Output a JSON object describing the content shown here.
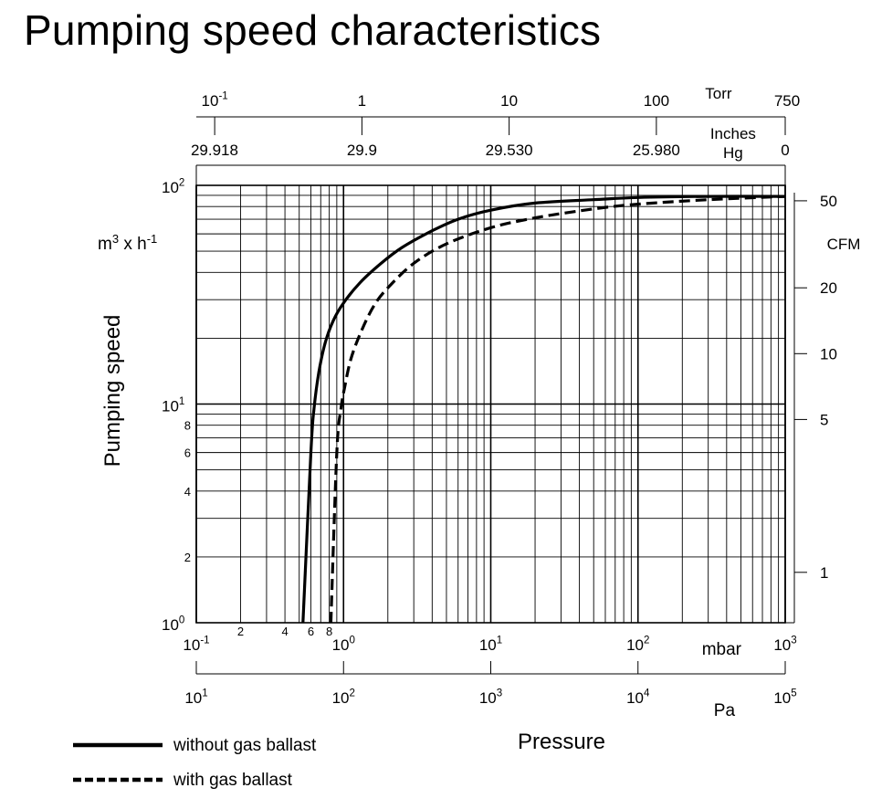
{
  "page": {
    "title": "Pumping speed characteristics"
  },
  "chart_data": {
    "type": "line",
    "title": "Pumping speed characteristics",
    "xlabel": "Pressure",
    "ylabel": "Pumping speed",
    "x_scale": "log",
    "y_scale": "log",
    "xlim": [
      0.1,
      1000
    ],
    "ylim": [
      1,
      100
    ],
    "grid": true,
    "x_unit": "mbar",
    "y_unit": "m³ x h⁻¹",
    "y_unit_parts": {
      "base": "m",
      "base_sup": "3",
      "mid": " x h",
      "mid_sup": "-1"
    },
    "x_ticks": [
      {
        "base": "10",
        "exp": "-1"
      },
      {
        "base": "10",
        "exp": "0"
      },
      {
        "base": "10",
        "exp": "1"
      },
      {
        "base": "10",
        "exp": "2"
      },
      {
        "base": "10",
        "exp": "3"
      }
    ],
    "x_minor_tick_labels": [
      {
        "value": 0.2,
        "label": "2"
      },
      {
        "value": 0.4,
        "label": "4"
      },
      {
        "value": 0.6,
        "label": "6"
      },
      {
        "value": 0.8,
        "label": "8"
      }
    ],
    "y_ticks": [
      {
        "base": "10",
        "exp": "0"
      },
      {
        "base": "10",
        "exp": "1"
      },
      {
        "base": "10",
        "exp": "2"
      }
    ],
    "y_minor_tick_labels": [
      {
        "value": 2,
        "label": "2"
      },
      {
        "value": 4,
        "label": "4"
      },
      {
        "value": 6,
        "label": "6"
      },
      {
        "value": 8,
        "label": "8"
      }
    ],
    "secondary_axes": {
      "pa": {
        "unit": "Pa",
        "ticks": [
          {
            "base": "10",
            "exp": "1",
            "value_mbar": 0.1
          },
          {
            "base": "10",
            "exp": "2",
            "value_mbar": 1
          },
          {
            "base": "10",
            "exp": "3",
            "value_mbar": 10
          },
          {
            "base": "10",
            "exp": "4",
            "value_mbar": 100
          },
          {
            "base": "10",
            "exp": "5",
            "value_mbar": 1000
          }
        ]
      },
      "torr": {
        "unit": "Torr",
        "ticks": [
          {
            "label_base": "10",
            "label_exp": "-1",
            "value_mbar": 0.1333
          },
          {
            "label_base": "1",
            "label_exp": "",
            "value_mbar": 1.333
          },
          {
            "label_base": "10",
            "label_exp": "",
            "value_mbar": 13.33
          },
          {
            "label_base": "100",
            "label_exp": "",
            "value_mbar": 133.3
          },
          {
            "label_base": "750",
            "label_exp": "",
            "value_mbar": 1000
          }
        ]
      },
      "inches_hg": {
        "unit_lines": [
          "Inches",
          "Hg"
        ],
        "ticks": [
          {
            "label": "29.918",
            "value_mbar": 0.133
          },
          {
            "label": "29.9",
            "value_mbar": 1.333
          },
          {
            "label": "29.530",
            "value_mbar": 13.33
          },
          {
            "label": "25.980",
            "value_mbar": 133.3
          },
          {
            "label": "0",
            "value_mbar": 1000
          }
        ]
      },
      "cfm": {
        "unit": "CFM",
        "ticks": [
          {
            "label": "1",
            "value_m3h": 1.7
          },
          {
            "label": "5",
            "value_m3h": 8.5
          },
          {
            "label": "10",
            "value_m3h": 17
          },
          {
            "label": "20",
            "value_m3h": 34
          },
          {
            "label": "50",
            "value_m3h": 85
          }
        ]
      }
    },
    "series": [
      {
        "name": "without gas ballast",
        "style": "solid",
        "points": [
          {
            "x": 0.53,
            "y": 1.0
          },
          {
            "x": 0.6,
            "y": 6.0
          },
          {
            "x": 0.63,
            "y": 9.5
          },
          {
            "x": 0.68,
            "y": 14.0
          },
          {
            "x": 0.75,
            "y": 19.0
          },
          {
            "x": 0.85,
            "y": 24.0
          },
          {
            "x": 1.0,
            "y": 29.0
          },
          {
            "x": 1.3,
            "y": 36.0
          },
          {
            "x": 1.8,
            "y": 44.0
          },
          {
            "x": 2.5,
            "y": 52.0
          },
          {
            "x": 4.0,
            "y": 62.0
          },
          {
            "x": 6.0,
            "y": 70.0
          },
          {
            "x": 10.0,
            "y": 77.0
          },
          {
            "x": 20.0,
            "y": 83.0
          },
          {
            "x": 50.0,
            "y": 86.0
          },
          {
            "x": 100.0,
            "y": 88.0
          },
          {
            "x": 300.0,
            "y": 89.0
          },
          {
            "x": 1000.0,
            "y": 89.0
          }
        ]
      },
      {
        "name": "with gas ballast",
        "style": "dashed",
        "points": [
          {
            "x": 0.82,
            "y": 1.0
          },
          {
            "x": 0.9,
            "y": 6.0
          },
          {
            "x": 0.96,
            "y": 9.5
          },
          {
            "x": 1.02,
            "y": 12.0
          },
          {
            "x": 1.12,
            "y": 16.0
          },
          {
            "x": 1.3,
            "y": 21.0
          },
          {
            "x": 1.6,
            "y": 28.0
          },
          {
            "x": 2.0,
            "y": 34.0
          },
          {
            "x": 3.0,
            "y": 44.0
          },
          {
            "x": 5.0,
            "y": 54.0
          },
          {
            "x": 10.0,
            "y": 64.0
          },
          {
            "x": 20.0,
            "y": 71.0
          },
          {
            "x": 50.0,
            "y": 78.0
          },
          {
            "x": 100.0,
            "y": 82.0
          },
          {
            "x": 300.0,
            "y": 86.0
          },
          {
            "x": 1000.0,
            "y": 89.0
          }
        ]
      }
    ]
  }
}
